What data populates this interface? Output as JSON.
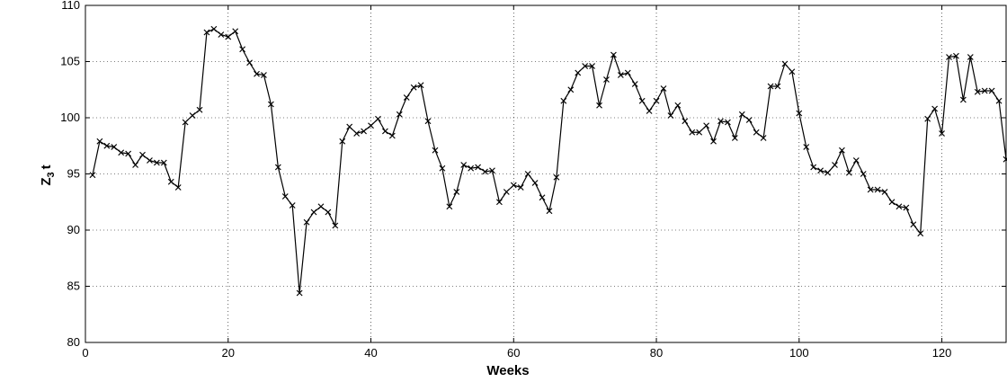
{
  "chart_data": {
    "type": "line",
    "title": "",
    "xlabel": "Weeks",
    "ylabel": "Z",
    "ylabel_sub": "3",
    "ylabel_suffix": "t",
    "xlim": [
      0,
      129
    ],
    "ylim": [
      80,
      110
    ],
    "xticks": [
      0,
      20,
      40,
      60,
      80,
      100,
      120
    ],
    "yticks": [
      80,
      85,
      90,
      95,
      100,
      105,
      110
    ],
    "grid": true,
    "marker": "x",
    "color": "#000000",
    "series": [
      {
        "x": [
          1,
          2,
          3,
          4,
          5,
          6,
          7,
          8,
          9,
          10,
          11,
          12,
          13,
          14,
          15,
          16,
          17,
          18,
          19,
          20,
          21,
          22,
          23,
          24,
          25,
          26,
          27,
          28,
          29,
          30,
          31,
          32,
          33,
          34,
          35,
          36,
          37,
          38,
          39,
          40,
          41,
          42,
          43,
          44,
          45,
          46,
          47,
          48,
          49,
          50,
          51,
          52,
          53,
          54,
          55,
          56,
          57,
          58,
          59,
          60,
          61,
          62,
          63,
          64,
          65,
          66,
          67,
          68,
          69,
          70,
          71,
          72,
          73,
          74,
          75,
          76,
          77,
          78,
          79,
          80,
          81,
          82,
          83,
          84,
          85,
          86,
          87,
          88,
          89,
          90,
          91,
          92,
          93,
          94,
          95,
          96,
          97,
          98,
          99,
          100,
          101,
          102,
          103,
          104,
          105,
          106,
          107,
          108,
          109,
          110,
          111,
          112,
          113,
          114,
          115,
          116,
          117,
          118,
          119,
          120,
          121,
          122,
          123,
          124,
          125,
          126,
          127,
          128,
          129
        ],
        "y": [
          94.9,
          97.9,
          97.5,
          97.4,
          96.9,
          96.8,
          95.8,
          96.7,
          96.2,
          96.0,
          96.0,
          94.3,
          93.8,
          99.6,
          100.2,
          100.7,
          107.6,
          107.9,
          107.4,
          107.2,
          107.7,
          106.1,
          104.9,
          103.9,
          103.8,
          101.2,
          95.6,
          93.0,
          92.2,
          84.4,
          90.7,
          91.6,
          92.1,
          91.6,
          90.4,
          97.9,
          99.2,
          98.6,
          98.8,
          99.3,
          99.9,
          98.8,
          98.4,
          100.3,
          101.8,
          102.7,
          102.9,
          99.7,
          97.1,
          95.5,
          92.1,
          93.4,
          95.8,
          95.5,
          95.6,
          95.2,
          95.3,
          92.5,
          93.4,
          94.0,
          93.8,
          95.0,
          94.2,
          92.9,
          91.7,
          94.7,
          101.5,
          102.5,
          104.0,
          104.6,
          104.6,
          101.1,
          103.4,
          105.6,
          103.8,
          104.0,
          103.0,
          101.5,
          100.6,
          101.5,
          102.6,
          100.2,
          101.1,
          99.7,
          98.7,
          98.7,
          99.3,
          97.9,
          99.7,
          99.6,
          98.2,
          100.3,
          99.8,
          98.7,
          98.2,
          102.8,
          102.8,
          104.8,
          104.1,
          100.4,
          97.4,
          95.6,
          95.3,
          95.1,
          95.8,
          97.1,
          95.1,
          96.2,
          95.0,
          93.6,
          93.6,
          93.4,
          92.5,
          92.1,
          92.0,
          90.5,
          89.7,
          99.9,
          100.8,
          98.6,
          105.4,
          105.5,
          101.6,
          105.4,
          102.3,
          102.4,
          102.4,
          101.5,
          96.3
        ]
      }
    ]
  }
}
